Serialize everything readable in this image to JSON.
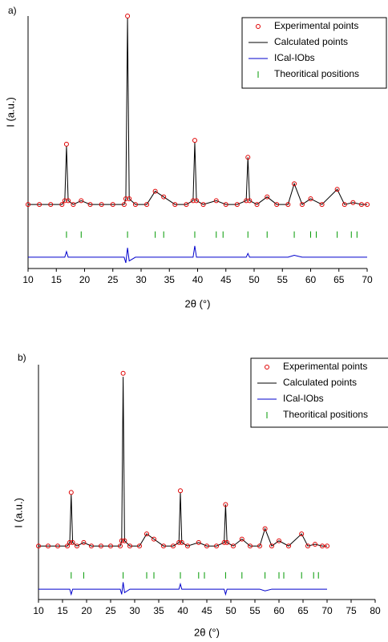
{
  "chart_data": [
    {
      "type": "line",
      "panel_label": "a)",
      "x_label": "2θ (°)",
      "y_label": "I (a.u.)",
      "xlim": [
        10,
        70
      ],
      "xticks": [
        10,
        15,
        20,
        25,
        30,
        35,
        40,
        45,
        50,
        55,
        60,
        65,
        70
      ],
      "ylim": [
        -34,
        100
      ],
      "legend": "upper right",
      "x": [
        10,
        12,
        14,
        16,
        16.5,
        16.8,
        17.1,
        18,
        19.4,
        21,
        23,
        25,
        27,
        27.3,
        27.6,
        27.9,
        29,
        31,
        32.5,
        34,
        36,
        38,
        39.2,
        39.5,
        39.8,
        41,
        43.3,
        45,
        47,
        48.6,
        48.9,
        49.2,
        50.5,
        52.3,
        54,
        56,
        57.1,
        58.5,
        60,
        62,
        64.7,
        66,
        67.5,
        69,
        70
      ],
      "series": [
        {
          "name": "Experimental points",
          "color": "#e00000",
          "marker": "circle",
          "values": [
            0,
            0,
            0,
            0,
            2,
            32,
            2,
            0,
            2,
            0,
            0,
            0,
            0,
            3,
            100,
            3,
            0,
            0,
            7,
            4,
            0,
            0,
            2,
            34,
            2,
            0,
            2,
            0,
            0,
            2,
            25,
            2,
            0,
            4,
            0,
            0,
            11,
            0,
            3,
            0,
            8,
            0,
            1,
            0,
            0
          ]
        },
        {
          "name": "Calculated points",
          "color": "#000000",
          "marker": "line",
          "values": [
            0,
            0,
            0,
            0,
            2,
            31,
            2,
            0,
            2,
            0,
            0,
            0,
            0,
            3,
            99,
            3,
            0,
            0,
            7,
            4,
            0,
            0,
            2,
            33,
            2,
            0,
            2,
            0,
            0,
            2,
            25,
            2,
            0,
            4,
            0,
            0,
            11,
            0,
            3,
            0,
            8,
            0,
            1,
            0,
            0
          ]
        },
        {
          "name": "ICal-IObs",
          "color": "#0000cc",
          "marker": "line",
          "values": [
            -28,
            -28,
            -28,
            -28,
            -28,
            -25,
            -28,
            -28,
            -28,
            -28,
            -28,
            -28,
            -28,
            -31,
            -23,
            -30,
            -28,
            -28,
            -28,
            -28,
            -28,
            -28,
            -28,
            -22,
            -28,
            -28,
            -28,
            -28,
            -28,
            -28,
            -26,
            -28,
            -28,
            -28,
            -28,
            -28,
            -27,
            -28,
            -28,
            -28,
            -28,
            -28,
            -28,
            -28,
            -28
          ]
        },
        {
          "name": "Theoritical positions",
          "color": "#009900",
          "marker": "tick",
          "x": [
            16.8,
            19.4,
            27.6,
            32.5,
            34,
            39.5,
            43.3,
            44.5,
            48.9,
            52.3,
            57.1,
            60,
            61,
            64.7,
            67.2,
            68.2
          ],
          "values": [
            -16,
            -16,
            -16,
            -16,
            -16,
            -16,
            -16,
            -16,
            -16,
            -16,
            -16,
            -16,
            -16,
            -16,
            -16,
            -16
          ]
        }
      ]
    },
    {
      "type": "line",
      "panel_label": "b)",
      "x_label": "2θ (°)",
      "y_label": "I (a.u.)",
      "xlim": [
        10,
        80
      ],
      "xticks": [
        10,
        15,
        20,
        25,
        30,
        35,
        40,
        45,
        50,
        55,
        60,
        65,
        70,
        75,
        80
      ],
      "ylim": [
        -31,
        105
      ],
      "legend": "upper right",
      "x": [
        10,
        12,
        14,
        16,
        16.5,
        16.8,
        17.1,
        18,
        19.4,
        21,
        23,
        25,
        27,
        27.3,
        27.6,
        27.9,
        29,
        31,
        32.5,
        34,
        36,
        38,
        39.2,
        39.5,
        39.8,
        41,
        43.3,
        45,
        47,
        48.6,
        48.9,
        49.2,
        50.5,
        52.3,
        54,
        56,
        57.1,
        58.5,
        60,
        62,
        64.7,
        66,
        67.5,
        69,
        70
      ],
      "series": [
        {
          "name": "Experimental points",
          "color": "#e00000",
          "marker": "circle",
          "values": [
            0,
            0,
            0,
            0,
            2,
            31,
            2,
            0,
            2,
            0,
            0,
            0,
            0,
            3,
            100,
            3,
            0,
            0,
            7,
            4,
            0,
            0,
            2,
            32,
            2,
            0,
            2,
            0,
            0,
            2,
            24,
            2,
            0,
            4,
            0,
            0,
            10,
            0,
            3,
            0,
            7,
            0,
            1,
            0,
            0
          ]
        },
        {
          "name": "Calculated points",
          "color": "#000000",
          "marker": "line",
          "values": [
            0,
            0,
            0,
            0,
            2,
            30,
            2,
            0,
            2,
            0,
            0,
            0,
            0,
            3,
            98,
            3,
            0,
            0,
            7,
            4,
            0,
            0,
            2,
            31,
            2,
            0,
            2,
            0,
            0,
            2,
            24,
            2,
            0,
            4,
            0,
            0,
            10,
            0,
            3,
            0,
            7,
            0,
            1,
            0,
            0
          ]
        },
        {
          "name": "ICal-IObs",
          "color": "#0000cc",
          "marker": "line",
          "values": [
            -25,
            -25,
            -25,
            -25,
            -25,
            -28,
            -25,
            -25,
            -25,
            -25,
            -25,
            -25,
            -25,
            -28,
            -21,
            -27,
            -25,
            -25,
            -25,
            -25,
            -25,
            -25,
            -25,
            -22,
            -25,
            -25,
            -25,
            -25,
            -25,
            -25,
            -28,
            -25,
            -25,
            -25,
            -25,
            -25,
            -26,
            -25,
            -25,
            -25,
            -25,
            -25,
            -25,
            -25,
            -25
          ]
        },
        {
          "name": "Theoritical positions",
          "color": "#009900",
          "marker": "tick",
          "x": [
            16.8,
            19.4,
            27.6,
            32.5,
            34,
            39.5,
            43.3,
            44.5,
            48.9,
            52.3,
            57.1,
            60,
            61,
            64.7,
            67.2,
            68.2
          ],
          "values": [
            -17,
            -17,
            -17,
            -17,
            -17,
            -17,
            -17,
            -17,
            -17,
            -17,
            -17,
            -17,
            -17,
            -17,
            -17,
            -17
          ]
        }
      ]
    }
  ]
}
